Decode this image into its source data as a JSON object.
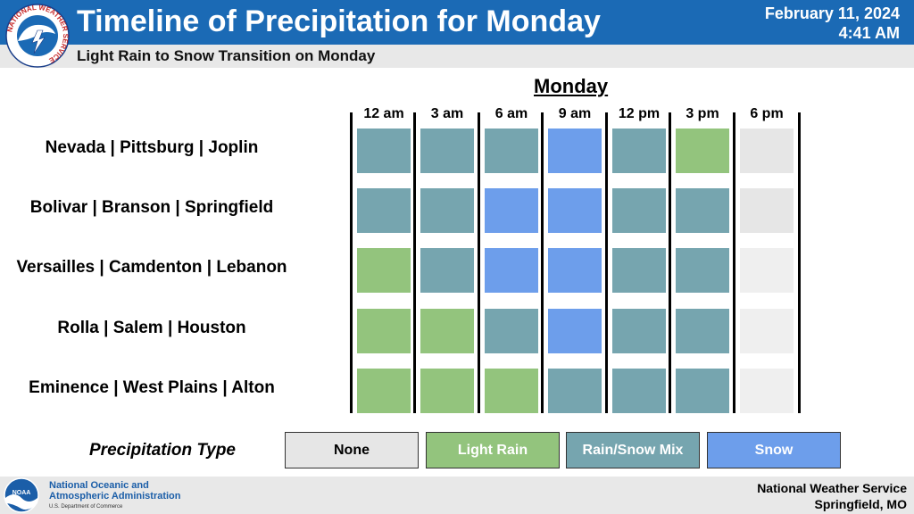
{
  "header": {
    "title": "Timeline of Precipitation for Monday",
    "date": "February 11, 2024",
    "time": "4:41 AM",
    "subtitle": "Light Rain to Snow Transition on Monday",
    "logo_text": "NATIONAL WEATHER SERVICE"
  },
  "timeline": {
    "day": "Monday",
    "times": [
      "12 am",
      "3 am",
      "6 am",
      "9 am",
      "12 pm",
      "3 pm",
      "6 pm"
    ],
    "rows": [
      {
        "label": "Nevada | Pittsburg | Joplin",
        "types": [
          "mix",
          "mix",
          "mix",
          "snow",
          "mix",
          "rain",
          "none"
        ]
      },
      {
        "label": "Bolivar | Branson | Springfield",
        "types": [
          "mix",
          "mix",
          "snow",
          "snow",
          "mix",
          "mix",
          "none"
        ]
      },
      {
        "label": "Versailles | Camdenton | Lebanon",
        "types": [
          "rain",
          "mix",
          "snow",
          "snow",
          "mix",
          "mix",
          "none"
        ]
      },
      {
        "label": "Rolla | Salem | Houston",
        "types": [
          "rain",
          "rain",
          "mix",
          "snow",
          "mix",
          "mix",
          "none"
        ]
      },
      {
        "label": "Eminence | West Plains | Alton",
        "types": [
          "rain",
          "rain",
          "rain",
          "mix",
          "mix",
          "mix",
          "none"
        ]
      }
    ]
  },
  "colors": {
    "none": "#e6e6e6",
    "rain": "#93c47d",
    "mix": "#76a5af",
    "snow": "#6d9eeb",
    "header": "#1b6ab5"
  },
  "legend": {
    "title": "Precipitation Type",
    "items": [
      {
        "label": "None",
        "type": "none",
        "text_color": "#000000"
      },
      {
        "label": "Light Rain",
        "type": "rain",
        "text_color": "#ffffff"
      },
      {
        "label": "Rain/Snow Mix",
        "type": "mix",
        "text_color": "#ffffff"
      },
      {
        "label": "Snow",
        "type": "snow",
        "text_color": "#ffffff"
      }
    ]
  },
  "footer": {
    "noaa_line1": "National Oceanic and",
    "noaa_line2": "Atmospheric Administration",
    "noaa_line3": "U.S. Department of Commerce",
    "noaa_logo_text": "NOAA",
    "nws_line1": "National Weather Service",
    "nws_line2": "Springfield, MO"
  }
}
